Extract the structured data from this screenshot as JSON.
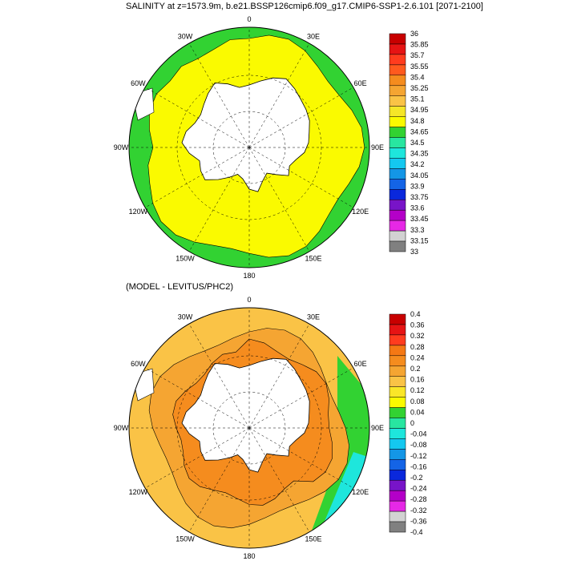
{
  "top": {
    "title": "SALINITY at z=1573.9m, b.e21.BSSP126cmip6.f09_g17.CMIP6-SSP1-2.6.101 [2071-2100]",
    "colorbar": {
      "labels": [
        "36",
        "35.85",
        "35.7",
        "35.55",
        "35.4",
        "35.25",
        "35.1",
        "34.95",
        "34.8",
        "34.65",
        "34.5",
        "34.35",
        "34.2",
        "34.05",
        "33.9",
        "33.75",
        "33.6",
        "33.45",
        "33.3",
        "33.15",
        "33"
      ],
      "colors": [
        "#c80000",
        "#e61414",
        "#ff3c1e",
        "#ff5a1e",
        "#f58c1e",
        "#f5a532",
        "#fac346",
        "#f5e628",
        "#fafa00",
        "#32d232",
        "#28e6a0",
        "#1ee6dc",
        "#14c8f0",
        "#1496e6",
        "#1464e6",
        "#0a28dc",
        "#7814c8",
        "#b400c8",
        "#e628e6",
        "#d2d2d2",
        "#808080"
      ]
    },
    "longitude_labels": [
      "0",
      "30E",
      "60E",
      "90E",
      "120E",
      "150E",
      "180",
      "150W",
      "120W",
      "90W",
      "60W",
      "30W"
    ]
  },
  "bottom": {
    "title": "(MODEL - LEVITUS/PHC2)",
    "colorbar": {
      "labels": [
        "0.4",
        "0.36",
        "0.32",
        "0.28",
        "0.24",
        "0.2",
        "0.16",
        "0.12",
        "0.08",
        "0.04",
        "0",
        "-0.04",
        "-0.08",
        "-0.12",
        "-0.16",
        "-0.2",
        "-0.24",
        "-0.28",
        "-0.32",
        "-0.36",
        "-0.4"
      ],
      "colors": [
        "#c80000",
        "#e61414",
        "#ff3c1e",
        "#f57814",
        "#f58c1e",
        "#f5a532",
        "#fac346",
        "#fae628",
        "#fafa00",
        "#32d232",
        "#28e6a0",
        "#1ee6dc",
        "#14c8f0",
        "#1496e6",
        "#1464e6",
        "#0a28dc",
        "#7814c8",
        "#b400c8",
        "#e628e6",
        "#d2d2d2",
        "#808080"
      ]
    },
    "longitude_labels": [
      "0",
      "30E",
      "60E",
      "90E",
      "120E",
      "150E",
      "180",
      "150W",
      "120W",
      "90W",
      "60W",
      "30W"
    ]
  },
  "fill_colors": {
    "ocean_high": "#fafa00",
    "ocean_edge": "#32d232",
    "anom_main": "#fac346",
    "anom_high": "#f5a532",
    "anom_peak": "#f58c1e",
    "land": "#ffffff"
  }
}
